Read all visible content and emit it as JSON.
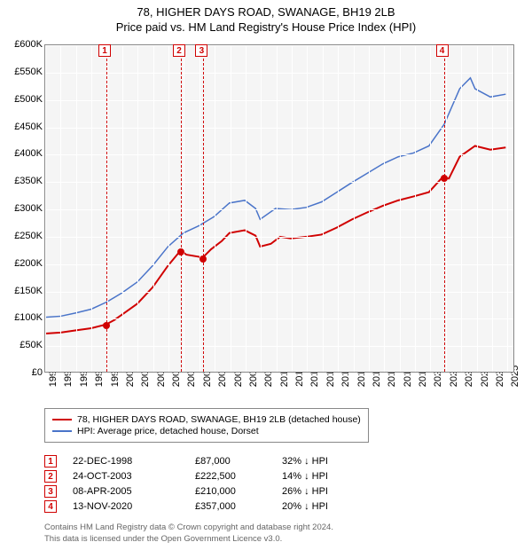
{
  "title": {
    "line1": "78, HIGHER DAYS ROAD, SWANAGE, BH19 2LB",
    "line2": "Price paid vs. HM Land Registry's House Price Index (HPI)"
  },
  "chart": {
    "type": "line",
    "background_color": "#f5f5f5",
    "grid_color": "#ffffff",
    "border_color": "#888888",
    "x": {
      "min": 1995,
      "max": 2025.5,
      "ticks": [
        1995,
        1996,
        1997,
        1998,
        1999,
        2000,
        2001,
        2002,
        2003,
        2004,
        2005,
        2006,
        2007,
        2008,
        2009,
        2010,
        2011,
        2012,
        2013,
        2014,
        2015,
        2016,
        2017,
        2018,
        2019,
        2020,
        2021,
        2022,
        2023,
        2024,
        2025
      ]
    },
    "y": {
      "min": 0,
      "max": 600000,
      "ticks": [
        0,
        50000,
        100000,
        150000,
        200000,
        250000,
        300000,
        350000,
        400000,
        450000,
        500000,
        550000,
        600000
      ],
      "tick_labels": [
        "£0",
        "£50K",
        "£100K",
        "£150K",
        "£200K",
        "£250K",
        "£300K",
        "£350K",
        "£400K",
        "£450K",
        "£500K",
        "£550K",
        "£600K"
      ]
    },
    "series": {
      "property": {
        "label": "78, HIGHER DAYS ROAD, SWANAGE, BH19 2LB (detached house)",
        "color": "#d00000",
        "line_width": 2,
        "points": [
          [
            1995,
            70000
          ],
          [
            1996,
            72000
          ],
          [
            1997,
            76000
          ],
          [
            1998,
            80000
          ],
          [
            1998.97,
            87000
          ],
          [
            1999.5,
            95000
          ],
          [
            2000,
            105000
          ],
          [
            2001,
            125000
          ],
          [
            2002,
            155000
          ],
          [
            2003,
            195000
          ],
          [
            2003.81,
            222500
          ],
          [
            2004.2,
            215000
          ],
          [
            2005.27,
            210000
          ],
          [
            2005.8,
            225000
          ],
          [
            2006.5,
            240000
          ],
          [
            2007,
            255000
          ],
          [
            2008,
            260000
          ],
          [
            2008.7,
            250000
          ],
          [
            2009,
            230000
          ],
          [
            2009.7,
            235000
          ],
          [
            2010.3,
            248000
          ],
          [
            2011,
            245000
          ],
          [
            2012,
            248000
          ],
          [
            2013,
            252000
          ],
          [
            2014,
            265000
          ],
          [
            2015,
            280000
          ],
          [
            2016,
            293000
          ],
          [
            2017,
            305000
          ],
          [
            2018,
            315000
          ],
          [
            2019,
            322000
          ],
          [
            2020,
            330000
          ],
          [
            2020.87,
            357000
          ],
          [
            2021.3,
            355000
          ],
          [
            2022,
            395000
          ],
          [
            2023,
            415000
          ],
          [
            2024,
            408000
          ],
          [
            2025,
            412000
          ]
        ]
      },
      "hpi": {
        "label": "HPI: Average price, detached house, Dorset",
        "color": "#4a74c9",
        "line_width": 1.5,
        "points": [
          [
            1995,
            100000
          ],
          [
            1996,
            102000
          ],
          [
            1997,
            108000
          ],
          [
            1998,
            115000
          ],
          [
            1999,
            128000
          ],
          [
            2000,
            145000
          ],
          [
            2001,
            165000
          ],
          [
            2002,
            195000
          ],
          [
            2003,
            230000
          ],
          [
            2004,
            255000
          ],
          [
            2005,
            268000
          ],
          [
            2006,
            285000
          ],
          [
            2007,
            310000
          ],
          [
            2008,
            315000
          ],
          [
            2008.7,
            300000
          ],
          [
            2009,
            280000
          ],
          [
            2010,
            300000
          ],
          [
            2011,
            298000
          ],
          [
            2012,
            302000
          ],
          [
            2013,
            312000
          ],
          [
            2014,
            330000
          ],
          [
            2015,
            348000
          ],
          [
            2016,
            365000
          ],
          [
            2017,
            382000
          ],
          [
            2018,
            395000
          ],
          [
            2019,
            402000
          ],
          [
            2020,
            415000
          ],
          [
            2021,
            455000
          ],
          [
            2022,
            520000
          ],
          [
            2022.7,
            540000
          ],
          [
            2023,
            520000
          ],
          [
            2024,
            505000
          ],
          [
            2025,
            510000
          ]
        ]
      }
    },
    "sale_markers": [
      {
        "n": "1",
        "year": 1998.97,
        "price": 87000
      },
      {
        "n": "2",
        "year": 2003.81,
        "price": 222500
      },
      {
        "n": "3",
        "year": 2005.27,
        "price": 210000
      },
      {
        "n": "4",
        "year": 2020.87,
        "price": 357000
      }
    ]
  },
  "legend": {
    "items": [
      {
        "color": "#d00000",
        "label": "78, HIGHER DAYS ROAD, SWANAGE, BH19 2LB (detached house)"
      },
      {
        "color": "#4a74c9",
        "label": "HPI: Average price, detached house, Dorset"
      }
    ]
  },
  "events": [
    {
      "n": "1",
      "date": "22-DEC-1998",
      "price": "£87,000",
      "delta": "32% ↓ HPI"
    },
    {
      "n": "2",
      "date": "24-OCT-2003",
      "price": "£222,500",
      "delta": "14% ↓ HPI"
    },
    {
      "n": "3",
      "date": "08-APR-2005",
      "price": "£210,000",
      "delta": "26% ↓ HPI"
    },
    {
      "n": "4",
      "date": "13-NOV-2020",
      "price": "£357,000",
      "delta": "20% ↓ HPI"
    }
  ],
  "footer": {
    "line1": "Contains HM Land Registry data © Crown copyright and database right 2024.",
    "line2": "This data is licensed under the Open Government Licence v3.0."
  },
  "colors": {
    "marker_red": "#d00000",
    "text": "#000000",
    "footer_text": "#666666"
  }
}
